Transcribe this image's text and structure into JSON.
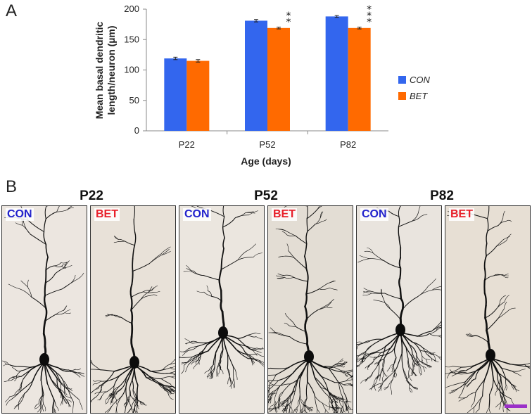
{
  "panel_a": {
    "letter": "A"
  },
  "panel_b": {
    "letter": "B"
  },
  "chart_data": {
    "type": "bar",
    "categories": [
      "P22",
      "P52",
      "P82"
    ],
    "series": [
      {
        "name": "CON",
        "values": [
          119,
          181,
          188
        ],
        "errors": [
          2,
          2,
          1.5
        ],
        "color": "#3366ee"
      },
      {
        "name": "BET",
        "values": [
          115,
          169,
          169
        ],
        "errors": [
          2,
          1.5,
          1.5
        ],
        "color": "#ff6a00"
      }
    ],
    "annotations": [
      {
        "category": "P52",
        "series": "BET",
        "text": "**"
      },
      {
        "category": "P82",
        "series": "BET",
        "text": "***"
      }
    ],
    "xlabel": "Age (days)",
    "ylabel_lines": [
      "Mean basal dendritic",
      "length/neuron (µm)"
    ],
    "ylim": [
      0,
      200
    ],
    "yticks": [
      0,
      50,
      100,
      150,
      200
    ],
    "grid": false,
    "legend_position": "right"
  },
  "micrographs": {
    "groups": [
      {
        "age": "P22",
        "panels": [
          {
            "label": "CON",
            "color": "#2222cc"
          },
          {
            "label": "BET",
            "color": "#e8202a"
          }
        ]
      },
      {
        "age": "P52",
        "panels": [
          {
            "label": "CON",
            "color": "#2222cc"
          },
          {
            "label": "BET",
            "color": "#e8202a"
          }
        ]
      },
      {
        "age": "P82",
        "panels": [
          {
            "label": "CON",
            "color": "#2222cc"
          },
          {
            "label": "BET",
            "color": "#e8202a"
          }
        ]
      }
    ],
    "scale_bar_color": "#9b30c8"
  }
}
